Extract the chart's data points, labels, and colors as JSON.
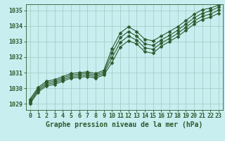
{
  "xlabel": "Graphe pression niveau de la mer (hPa)",
  "ylabel": "",
  "bg_color": "#c8eef0",
  "plot_bg_color": "#c8eef0",
  "grid_color": "#a0c8c0",
  "line_color": "#2d5a2d",
  "marker_color": "#2d5a2d",
  "xlabel_color": "#2d5a2d",
  "tick_color": "#2d5a2d",
  "ylim": [
    1028.6,
    1035.4
  ],
  "xlim": [
    -0.5,
    23.5
  ],
  "yticks": [
    1029,
    1030,
    1031,
    1032,
    1033,
    1034,
    1035
  ],
  "xticks": [
    0,
    1,
    2,
    3,
    4,
    5,
    6,
    7,
    8,
    9,
    10,
    11,
    12,
    13,
    14,
    15,
    16,
    17,
    18,
    19,
    20,
    21,
    22,
    23
  ],
  "series": [
    {
      "x": [
        0,
        1,
        2,
        3,
        4,
        5,
        6,
        7,
        8,
        9,
        10,
        11,
        12,
        13,
        14,
        15,
        16,
        17,
        18,
        19,
        20,
        21,
        22,
        23
      ],
      "y": [
        1029.3,
        1030.05,
        1030.45,
        1030.55,
        1030.75,
        1030.95,
        1031.0,
        1031.05,
        1030.95,
        1031.15,
        1032.55,
        1033.55,
        1033.95,
        1033.65,
        1033.15,
        1033.05,
        1033.35,
        1033.65,
        1033.95,
        1034.35,
        1034.75,
        1035.05,
        1035.15,
        1035.35
      ]
    },
    {
      "x": [
        0,
        1,
        2,
        3,
        4,
        5,
        6,
        7,
        8,
        9,
        10,
        11,
        12,
        13,
        14,
        15,
        16,
        17,
        18,
        19,
        20,
        21,
        22,
        23
      ],
      "y": [
        1029.2,
        1029.95,
        1030.35,
        1030.45,
        1030.65,
        1030.85,
        1030.9,
        1030.95,
        1030.85,
        1031.05,
        1032.25,
        1033.25,
        1033.65,
        1033.35,
        1032.85,
        1032.75,
        1033.1,
        1033.4,
        1033.72,
        1034.12,
        1034.52,
        1034.82,
        1034.97,
        1035.22
      ]
    },
    {
      "x": [
        0,
        1,
        2,
        3,
        4,
        5,
        6,
        7,
        8,
        9,
        10,
        11,
        12,
        13,
        14,
        15,
        16,
        17,
        18,
        19,
        20,
        21,
        22,
        23
      ],
      "y": [
        1029.1,
        1029.85,
        1030.25,
        1030.35,
        1030.55,
        1030.75,
        1030.8,
        1030.85,
        1030.75,
        1030.95,
        1031.95,
        1032.95,
        1033.35,
        1033.1,
        1032.6,
        1032.5,
        1032.9,
        1033.2,
        1033.52,
        1033.92,
        1034.32,
        1034.62,
        1034.77,
        1035.02
      ]
    },
    {
      "x": [
        0,
        1,
        2,
        3,
        4,
        5,
        6,
        7,
        8,
        9,
        10,
        11,
        12,
        13,
        14,
        15,
        16,
        17,
        18,
        19,
        20,
        21,
        22,
        23
      ],
      "y": [
        1029.0,
        1029.75,
        1030.15,
        1030.25,
        1030.45,
        1030.65,
        1030.7,
        1030.75,
        1030.65,
        1030.85,
        1031.65,
        1032.65,
        1033.05,
        1032.85,
        1032.35,
        1032.25,
        1032.7,
        1033.0,
        1033.32,
        1033.72,
        1034.12,
        1034.42,
        1034.57,
        1034.82
      ]
    }
  ],
  "line_width": 0.8,
  "marker_size": 2.5,
  "marker_style": "D",
  "font_size_xlabel": 7,
  "font_size_ticks": 6
}
